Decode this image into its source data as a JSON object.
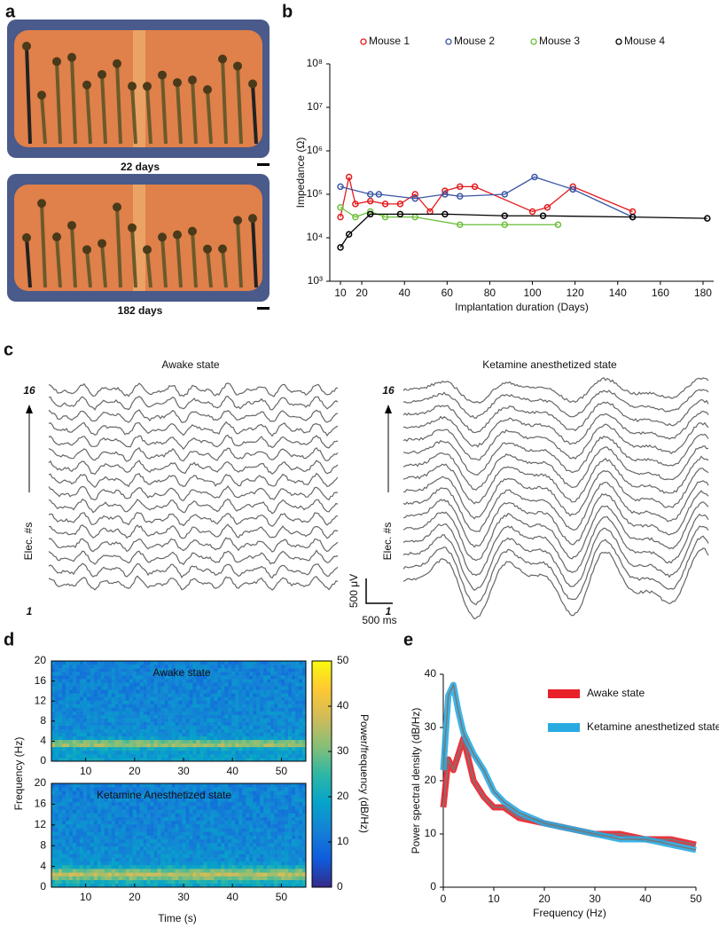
{
  "chart_data": [
    {
      "type": "image",
      "panel": "a",
      "captions": [
        "22 days",
        "182 days"
      ]
    },
    {
      "type": "line",
      "panel": "b",
      "yscale": "log",
      "legend": "top",
      "xlabel": "Implantation duration (Days)",
      "ylabel": "Impedance (Ω)",
      "xlim": [
        5,
        185
      ],
      "xticks": [
        10,
        20,
        40,
        60,
        80,
        100,
        120,
        140,
        160,
        180
      ],
      "ylim": [
        1000,
        100000000
      ],
      "yticks": [
        {
          "value": 1000,
          "label": "10³"
        },
        {
          "value": 10000,
          "label": "10⁴"
        },
        {
          "value": 100000,
          "label": "10⁵"
        },
        {
          "value": 1000000,
          "label": "10⁶"
        },
        {
          "value": 10000000,
          "label": "10⁷"
        },
        {
          "value": 100000000,
          "label": "10⁸"
        }
      ],
      "series": [
        {
          "name": "Mouse 1",
          "color": "#e31a1c",
          "x": [
            10,
            14,
            17,
            24,
            31,
            38,
            45,
            52,
            59,
            66,
            73,
            100,
            107,
            119,
            147
          ],
          "values": [
            30000,
            250000,
            60000,
            70000,
            60000,
            60000,
            100000,
            40000,
            120000,
            150000,
            150000,
            40000,
            50000,
            150000,
            40000
          ]
        },
        {
          "name": "Mouse 2",
          "color": "#3a56a5",
          "x": [
            10,
            24,
            28,
            45,
            59,
            66,
            87,
            101,
            119,
            147
          ],
          "values": [
            150000,
            100000,
            100000,
            80000,
            100000,
            90000,
            100000,
            250000,
            130000,
            30000
          ]
        },
        {
          "name": "Mouse 3",
          "color": "#6cbf3a",
          "x": [
            10,
            17,
            24,
            31,
            45,
            66,
            87,
            112
          ],
          "values": [
            50000,
            30000,
            40000,
            30000,
            30000,
            20000,
            20000,
            20000
          ]
        },
        {
          "name": "Mouse 4",
          "color": "#000000",
          "x": [
            10,
            14,
            24,
            38,
            59,
            87,
            105,
            147,
            182
          ],
          "values": [
            6000,
            12000,
            35000,
            35000,
            35000,
            32000,
            32000,
            30000,
            28000
          ]
        }
      ]
    },
    {
      "type": "traces",
      "panel": "c",
      "titles": [
        "Awake state",
        "Ketamine anesthetized state"
      ],
      "top_label": "16",
      "bottom_label": "1",
      "ylabel": "Elec. #s",
      "scalebar": [
        "500 μV",
        "500 ms"
      ]
    },
    {
      "type": "heatmap",
      "panel": "d",
      "titles": [
        "Awake state",
        "Ketamine Anesthetized state"
      ],
      "xlabel": "Time (s)",
      "ylabel": "Frequency (Hz)",
      "clabel": "Power/frequency (dB/Hz)",
      "xlim": [
        3,
        55
      ],
      "xticks": [
        10,
        20,
        30,
        40,
        50
      ],
      "ylim": [
        0,
        20
      ],
      "yticks": [
        0,
        4,
        8,
        12,
        16,
        20
      ],
      "clim": [
        0,
        50
      ],
      "cticks": [
        0,
        10,
        20,
        30,
        40,
        50
      ]
    },
    {
      "type": "line",
      "panel": "e",
      "legend": "right",
      "xlabel": "Frequency (Hz)",
      "ylabel": "Power spectral density  (dB/Hz)",
      "xlim": [
        0,
        50
      ],
      "xticks": [
        0,
        10,
        20,
        30,
        40,
        50
      ],
      "ylim": [
        0,
        40
      ],
      "yticks": [
        0,
        10,
        20,
        30,
        40
      ],
      "series": [
        {
          "name": "Awake state",
          "color": "#e8202a",
          "x": [
            0,
            1,
            2,
            3,
            4,
            5,
            6,
            8,
            10,
            12,
            15,
            20,
            25,
            30,
            35,
            40,
            45,
            50
          ],
          "values": [
            15,
            24,
            22,
            25,
            28,
            24,
            20,
            17,
            15,
            15,
            13,
            12,
            11,
            10,
            10,
            9,
            9,
            8
          ]
        },
        {
          "name": "Ketamine anesthetized state",
          "color": "#29abe2",
          "x": [
            0,
            1,
            2,
            3,
            4,
            5,
            6,
            8,
            10,
            12,
            15,
            20,
            25,
            30,
            35,
            40,
            45,
            50
          ],
          "values": [
            22,
            36,
            38,
            33,
            29,
            27,
            25,
            22,
            18,
            16,
            14,
            12,
            11,
            10,
            9,
            9,
            8,
            7
          ]
        }
      ]
    }
  ]
}
